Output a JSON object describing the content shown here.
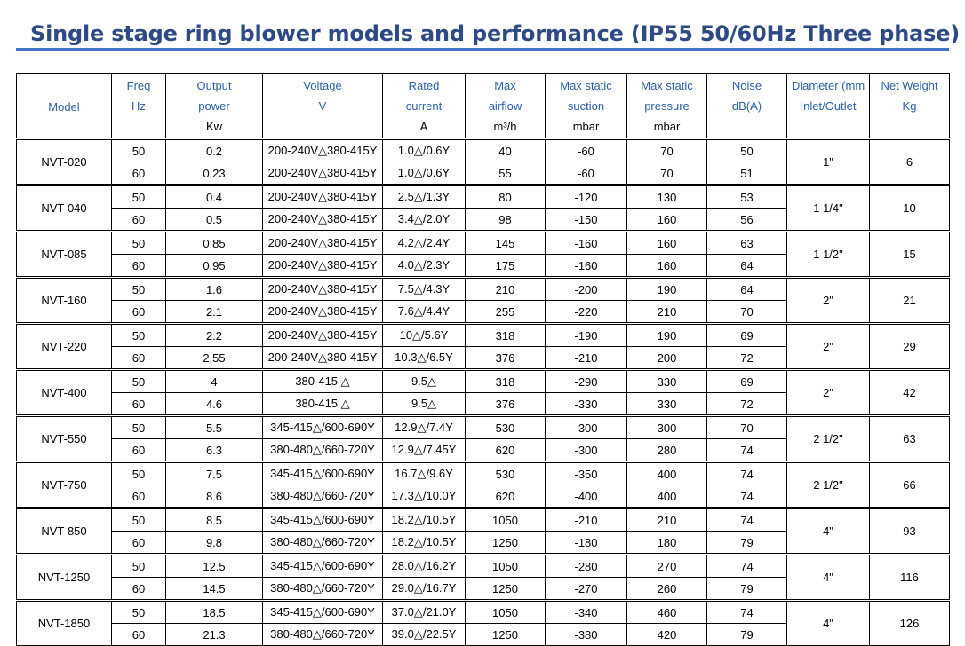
{
  "header": {
    "title": "Single stage ring blower models and performance (IP55 50/60Hz Three phase)"
  },
  "table": {
    "columns": [
      [
        "Model"
      ],
      [
        "Freq",
        "Hz"
      ],
      [
        "Output",
        "power",
        "Kw"
      ],
      [
        "Voltage",
        "V"
      ],
      [
        "Rated",
        "current",
        "A"
      ],
      [
        "Max",
        "airflow",
        "m³/h"
      ],
      [
        "Max static",
        "suction",
        "mbar"
      ],
      [
        "Max static",
        "pressure",
        "mbar"
      ],
      [
        "Noise",
        "dB(A)"
      ],
      [
        "Diameter (mm",
        "Inlet/Outlet"
      ],
      [
        "Net Weight",
        "Kg"
      ]
    ],
    "models": [
      {
        "model": "NVT-020",
        "rows": [
          [
            "50",
            "0.2",
            "200-240V△380-415Y",
            "1.0△/0.6Y",
            "40",
            "-60",
            "70",
            "50"
          ],
          [
            "60",
            "0.23",
            "200-240V△380-415Y",
            "1.0△/0.6Y",
            "55",
            "-60",
            "70",
            "51"
          ]
        ],
        "diameter": "1\"",
        "weight": "6"
      },
      {
        "model": "NVT-040",
        "rows": [
          [
            "50",
            "0.4",
            "200-240V△380-415Y",
            "2.5△/1.3Y",
            "80",
            "-120",
            "130",
            "53"
          ],
          [
            "60",
            "0.5",
            "200-240V△380-415Y",
            "3.4△/2.0Y",
            "98",
            "-150",
            "160",
            "56"
          ]
        ],
        "diameter": "1 1/4\"",
        "weight": "10"
      },
      {
        "model": "NVT-085",
        "rows": [
          [
            "50",
            "0.85",
            "200-240V△380-415Y",
            "4.2△/2.4Y",
            "145",
            "-160",
            "160",
            "63"
          ],
          [
            "60",
            "0.95",
            "200-240V△380-415Y",
            "4.0△/2.3Y",
            "175",
            "-160",
            "160",
            "64"
          ]
        ],
        "diameter": "1 1/2\"",
        "weight": "15"
      },
      {
        "model": "NVT-160",
        "rows": [
          [
            "50",
            "1.6",
            "200-240V△380-415Y",
            "7.5△/4.3Y",
            "210",
            "-200",
            "190",
            "64"
          ],
          [
            "60",
            "2.1",
            "200-240V△380-415Y",
            "7.6△/4.4Y",
            "255",
            "-220",
            "210",
            "70"
          ]
        ],
        "diameter": "2\"",
        "weight": "21"
      },
      {
        "model": "NVT-220",
        "rows": [
          [
            "50",
            "2.2",
            "200-240V△380-415Y",
            "10△/5.6Y",
            "318",
            "-190",
            "190",
            "69"
          ],
          [
            "60",
            "2.55",
            "200-240V△380-415Y",
            "10.3△/6.5Y",
            "376",
            "-210",
            "200",
            "72"
          ]
        ],
        "diameter": "2\"",
        "weight": "29"
      },
      {
        "model": "NVT-400",
        "rows": [
          [
            "50",
            "4",
            "380-415 △",
            "9.5△",
            "318",
            "-290",
            "330",
            "69"
          ],
          [
            "60",
            "4.6",
            "380-415 △",
            "9.5△",
            "376",
            "-330",
            "330",
            "72"
          ]
        ],
        "diameter": "2\"",
        "weight": "42"
      },
      {
        "model": "NVT-550",
        "rows": [
          [
            "50",
            "5.5",
            "345-415△/600-690Y",
            "12.9△/7.4Y",
            "530",
            "-300",
            "300",
            "70"
          ],
          [
            "60",
            "6.3",
            "380-480△/660-720Y",
            "12.9△/7.45Y",
            "620",
            "-300",
            "280",
            "74"
          ]
        ],
        "diameter": "2 1/2\"",
        "weight": "63"
      },
      {
        "model": "NVT-750",
        "rows": [
          [
            "50",
            "7.5",
            "345-415△/600-690Y",
            "16.7△/9.6Y",
            "530",
            "-350",
            "400",
            "74"
          ],
          [
            "60",
            "8.6",
            "380-480△/660-720Y",
            "17.3△/10.0Y",
            "620",
            "-400",
            "400",
            "74"
          ]
        ],
        "diameter": "2 1/2\"",
        "weight": "66"
      },
      {
        "model": "NVT-850",
        "rows": [
          [
            "50",
            "8.5",
            "345-415△/600-690Y",
            "18.2△/10.5Y",
            "1050",
            "-210",
            "210",
            "74"
          ],
          [
            "60",
            "9.8",
            "380-480△/660-720Y",
            "18.2△/10.5Y",
            "1250",
            "-180",
            "180",
            "79"
          ]
        ],
        "diameter": "4\"",
        "weight": "93"
      },
      {
        "model": "NVT-1250",
        "rows": [
          [
            "50",
            "12.5",
            "345-415△/600-690Y",
            "28.0△/16.2Y",
            "1050",
            "-280",
            "270",
            "74"
          ],
          [
            "60",
            "14.5",
            "380-480△/660-720Y",
            "29.0△/16.7Y",
            "1250",
            "-270",
            "260",
            "79"
          ]
        ],
        "diameter": "4\"",
        "weight": "116"
      },
      {
        "model": "NVT-1850",
        "rows": [
          [
            "50",
            "18.5",
            "345-415△/600-690Y",
            "37.0△/21.0Y",
            "1050",
            "-340",
            "460",
            "74"
          ],
          [
            "60",
            "21.3",
            "380-480△/660-720Y",
            "39.0△/22.5Y",
            "1250",
            "-380",
            "420",
            "79"
          ]
        ],
        "diameter": "4\"",
        "weight": "126"
      }
    ]
  }
}
